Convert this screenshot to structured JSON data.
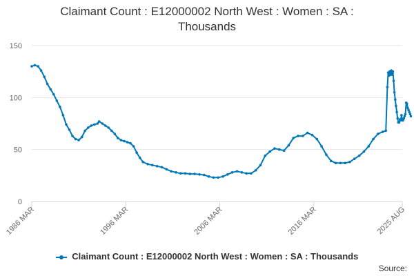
{
  "chart_data": {
    "type": "line",
    "title_lines": [
      "Claimant Count : E12000002 North West : Women : SA :",
      "Thousands"
    ],
    "xlabel": "",
    "ylabel": "",
    "ylim": [
      0,
      150
    ],
    "yticks": [
      0,
      50,
      100,
      150
    ],
    "xlim": [
      "1986-03",
      "2025-08"
    ],
    "xticks": [
      "1986 MAR",
      "1996 MAR",
      "2006 MAR",
      "2016 MAR",
      "2025 AUG"
    ],
    "xtick_dates": [
      "1986-03",
      "1996-03",
      "2006-03",
      "2016-03",
      "2025-08"
    ],
    "grid": "horizontal",
    "legend_position": "bottom",
    "source_label": "Source:",
    "color": "#0077b6",
    "series": [
      {
        "name": "Claimant Count : E12000002 North West : Women : SA : Thousands",
        "points": [
          [
            "1986-03",
            130
          ],
          [
            "1986-07",
            131
          ],
          [
            "1986-11",
            130
          ],
          [
            "1987-03",
            126
          ],
          [
            "1987-07",
            120
          ],
          [
            "1987-11",
            113
          ],
          [
            "1988-03",
            108
          ],
          [
            "1988-07",
            103
          ],
          [
            "1988-11",
            97
          ],
          [
            "1989-03",
            91
          ],
          [
            "1989-07",
            83
          ],
          [
            "1989-11",
            74
          ],
          [
            "1990-03",
            69
          ],
          [
            "1990-07",
            63
          ],
          [
            "1990-11",
            60
          ],
          [
            "1991-03",
            59
          ],
          [
            "1991-07",
            62
          ],
          [
            "1991-11",
            68
          ],
          [
            "1992-03",
            71
          ],
          [
            "1992-07",
            73
          ],
          [
            "1992-11",
            74
          ],
          [
            "1993-03",
            75
          ],
          [
            "1993-05",
            77
          ],
          [
            "1993-09",
            75
          ],
          [
            "1994-01",
            73
          ],
          [
            "1994-05",
            71
          ],
          [
            "1994-09",
            68
          ],
          [
            "1995-01",
            65
          ],
          [
            "1995-05",
            61
          ],
          [
            "1995-09",
            59
          ],
          [
            "1996-01",
            58
          ],
          [
            "1996-05",
            57
          ],
          [
            "1996-09",
            56
          ],
          [
            "1997-01",
            53
          ],
          [
            "1997-05",
            47
          ],
          [
            "1997-09",
            42
          ],
          [
            "1998-01",
            38
          ],
          [
            "1998-07",
            36
          ],
          [
            "1999-01",
            35
          ],
          [
            "1999-07",
            34
          ],
          [
            "2000-01",
            33
          ],
          [
            "2000-07",
            31
          ],
          [
            "2001-01",
            29
          ],
          [
            "2001-07",
            28
          ],
          [
            "2002-01",
            27
          ],
          [
            "2002-07",
            27
          ],
          [
            "2003-01",
            26.5
          ],
          [
            "2003-07",
            26.5
          ],
          [
            "2004-01",
            26
          ],
          [
            "2004-07",
            25.5
          ],
          [
            "2005-01",
            24
          ],
          [
            "2005-07",
            23
          ],
          [
            "2006-01",
            23
          ],
          [
            "2006-07",
            24
          ],
          [
            "2007-01",
            26
          ],
          [
            "2007-07",
            28
          ],
          [
            "2008-01",
            29
          ],
          [
            "2008-07",
            28
          ],
          [
            "2009-01",
            27
          ],
          [
            "2009-07",
            27
          ],
          [
            "2010-01",
            30
          ],
          [
            "2010-07",
            35
          ],
          [
            "2011-01",
            44
          ],
          [
            "2011-07",
            48
          ],
          [
            "2012-01",
            51
          ],
          [
            "2012-07",
            50
          ],
          [
            "2013-01",
            49
          ],
          [
            "2013-07",
            54
          ],
          [
            "2014-01",
            61
          ],
          [
            "2014-07",
            63
          ],
          [
            "2015-01",
            63
          ],
          [
            "2015-07",
            66
          ],
          [
            "2016-01",
            64
          ],
          [
            "2016-07",
            60
          ],
          [
            "2017-01",
            53
          ],
          [
            "2017-07",
            45
          ],
          [
            "2018-01",
            39
          ],
          [
            "2018-07",
            37
          ],
          [
            "2019-01",
            37
          ],
          [
            "2019-07",
            37
          ],
          [
            "2020-01",
            38
          ],
          [
            "2020-07",
            41
          ],
          [
            "2021-01",
            44
          ],
          [
            "2021-07",
            48
          ],
          [
            "2022-01",
            53
          ],
          [
            "2022-07",
            60
          ],
          [
            "2023-01",
            65
          ],
          [
            "2023-07",
            67
          ],
          [
            "2023-11",
            68
          ],
          [
            "2024-01",
            110
          ],
          [
            "2024-02",
            124
          ],
          [
            "2024-03",
            121
          ],
          [
            "2024-04",
            125
          ],
          [
            "2024-05",
            122
          ],
          [
            "2024-06",
            126
          ],
          [
            "2024-07",
            122
          ],
          [
            "2024-08",
            125
          ],
          [
            "2024-09",
            116
          ],
          [
            "2024-10",
            105
          ],
          [
            "2024-11",
            98
          ],
          [
            "2024-12",
            92
          ],
          [
            "2025-01",
            86
          ],
          [
            "2025-02",
            80
          ],
          [
            "2025-03",
            76
          ],
          [
            "2025-04",
            76
          ],
          [
            "2025-05",
            79
          ],
          [
            "2025-06",
            78
          ],
          [
            "2025-07",
            83
          ],
          [
            "2025-08",
            78
          ],
          [
            "2025-09",
            78
          ],
          [
            "2025-10",
            80
          ],
          [
            "2025-11",
            82
          ],
          [
            "2025-12",
            84
          ],
          [
            "2026-01",
            95
          ],
          [
            "2026-02",
            94
          ],
          [
            "2026-03",
            90
          ],
          [
            "2026-04",
            88
          ],
          [
            "2026-05",
            86
          ],
          [
            "2026-06",
            84
          ],
          [
            "2026-07",
            82
          ]
        ]
      }
    ]
  }
}
